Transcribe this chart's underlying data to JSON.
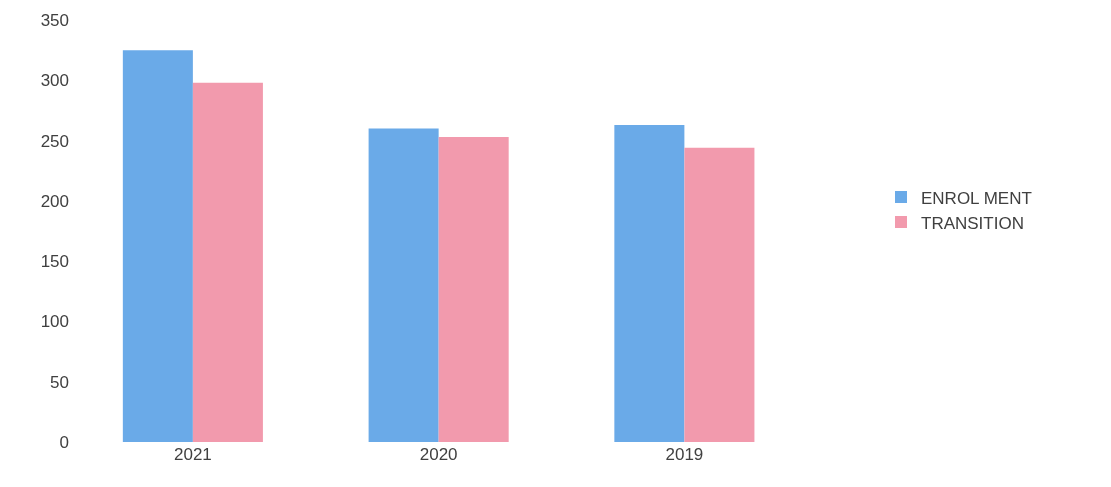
{
  "chart_data": {
    "type": "bar",
    "categories": [
      "2021",
      "2020",
      "2019"
    ],
    "series": [
      {
        "name": "ENROL MENT",
        "color": "#6aaae8",
        "values": [
          325,
          260,
          263
        ]
      },
      {
        "name": "TRANSITION",
        "color": "#f29aad",
        "values": [
          298,
          253,
          244
        ]
      }
    ],
    "ylim": [
      0,
      350
    ],
    "yticks": [
      0,
      50,
      100,
      150,
      200,
      250,
      300,
      350
    ],
    "grid": false,
    "legend": "right"
  }
}
